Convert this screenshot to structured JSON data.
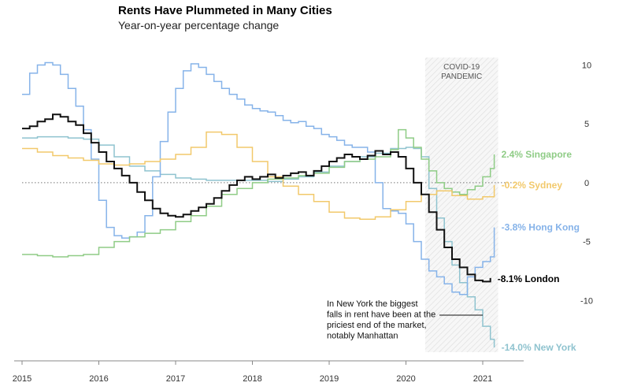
{
  "chart_data": {
    "type": "line",
    "title": "Rents Have Plummeted in Many Cities",
    "subtitle": "Year-on-year percentage change",
    "xlabel": "",
    "ylabel": "",
    "xlim": [
      2015,
      2021.4
    ],
    "ylim": [
      -14.2,
      10.5
    ],
    "x_ticks": [
      "2015",
      "2016",
      "2017",
      "2018",
      "2019",
      "2020",
      "2021"
    ],
    "y_ticks": [
      10,
      5,
      0,
      -5,
      -10
    ],
    "y_tick_labels": [
      "10",
      "5",
      "0",
      "-5",
      "-10"
    ],
    "zero_line": "dotted",
    "grid": false,
    "legend": "end-of-line labels",
    "shaded_region": {
      "label_line1": "COVID-19",
      "label_line2": "PANDEMIC",
      "x_start": 2020.25,
      "x_end": 2021.2
    },
    "annotation": {
      "lines": [
        "In New York the biggest",
        "falls in rent have been at the",
        "priciest end of the market,",
        "notably Manhattan"
      ],
      "points_to": "New York"
    },
    "series": [
      {
        "name": "New York",
        "end_label": "-14.0% New York",
        "color": "#8fc3cf",
        "x": [
          2015.0,
          2015.2,
          2015.4,
          2015.6,
          2015.8,
          2016.0,
          2016.2,
          2016.4,
          2016.6,
          2016.8,
          2017.0,
          2017.2,
          2017.4,
          2017.6,
          2017.8,
          2018.0,
          2018.2,
          2018.4,
          2018.6,
          2018.8,
          2019.0,
          2019.2,
          2019.4,
          2019.6,
          2019.8,
          2020.0,
          2020.1,
          2020.2,
          2020.3,
          2020.4,
          2020.5,
          2020.6,
          2020.7,
          2020.8,
          2020.9,
          2021.0,
          2021.1,
          2021.15
        ],
        "values": [
          3.8,
          3.9,
          3.9,
          3.8,
          3.7,
          3.2,
          2.2,
          1.4,
          1.0,
          0.7,
          0.4,
          0.3,
          0.2,
          0.2,
          0.2,
          0.2,
          0.1,
          0.3,
          0.5,
          0.9,
          1.4,
          1.8,
          2.2,
          2.5,
          2.9,
          3.0,
          2.9,
          2.2,
          -0.5,
          -3.0,
          -5.0,
          -7.0,
          -8.5,
          -9.7,
          -10.8,
          -12.2,
          -13.3,
          -14.0
        ]
      },
      {
        "name": "Hong Kong",
        "end_label": "-3.8% Hong Kong",
        "color": "#86b3e9",
        "x": [
          2015.0,
          2015.1,
          2015.2,
          2015.3,
          2015.4,
          2015.5,
          2015.6,
          2015.7,
          2015.8,
          2015.9,
          2016.0,
          2016.1,
          2016.2,
          2016.3,
          2016.4,
          2016.5,
          2016.6,
          2016.7,
          2016.8,
          2016.9,
          2017.0,
          2017.1,
          2017.2,
          2017.3,
          2017.4,
          2017.5,
          2017.6,
          2017.7,
          2017.8,
          2017.9,
          2018.0,
          2018.1,
          2018.2,
          2018.3,
          2018.4,
          2018.5,
          2018.6,
          2018.7,
          2018.8,
          2018.9,
          2019.0,
          2019.1,
          2019.2,
          2019.3,
          2019.4,
          2019.5,
          2019.6,
          2019.7,
          2019.8,
          2019.9,
          2020.0,
          2020.1,
          2020.2,
          2020.3,
          2020.4,
          2020.5,
          2020.6,
          2020.7,
          2020.8,
          2020.9,
          2021.0,
          2021.1,
          2021.15
        ],
        "values": [
          7.5,
          9.3,
          10.0,
          10.2,
          10.0,
          9.2,
          8.0,
          6.5,
          4.5,
          2.0,
          -1.5,
          -3.8,
          -4.5,
          -4.7,
          -4.6,
          -4.2,
          -2.8,
          0.5,
          3.5,
          6.0,
          8.0,
          9.5,
          10.1,
          9.8,
          9.2,
          8.6,
          8.0,
          7.5,
          7.1,
          6.6,
          6.3,
          6.1,
          6.0,
          5.7,
          5.3,
          5.1,
          5.2,
          4.8,
          4.6,
          4.1,
          3.9,
          3.6,
          3.2,
          3.0,
          3.0,
          2.6,
          0.0,
          -2.2,
          -2.4,
          -2.6,
          -3.5,
          -5.0,
          -6.5,
          -7.5,
          -8.0,
          -8.6,
          -9.3,
          -9.5,
          -8.0,
          -7.2,
          -6.7,
          -6.3,
          -3.8
        ]
      },
      {
        "name": "Singapore",
        "end_label": "2.4% Singapore",
        "color": "#8fcc86",
        "x": [
          2015.0,
          2015.2,
          2015.4,
          2015.6,
          2015.8,
          2016.0,
          2016.2,
          2016.4,
          2016.6,
          2016.8,
          2017.0,
          2017.2,
          2017.4,
          2017.6,
          2017.8,
          2018.0,
          2018.2,
          2018.4,
          2018.6,
          2018.8,
          2019.0,
          2019.2,
          2019.4,
          2019.6,
          2019.8,
          2019.9,
          2020.0,
          2020.1,
          2020.2,
          2020.3,
          2020.4,
          2020.5,
          2020.6,
          2020.7,
          2020.8,
          2020.9,
          2021.0,
          2021.1,
          2021.15
        ],
        "values": [
          -6.1,
          -6.2,
          -6.3,
          -6.2,
          -6.1,
          -5.5,
          -5.0,
          -4.6,
          -4.3,
          -4.0,
          -3.3,
          -2.8,
          -2.0,
          -1.0,
          -0.5,
          0.0,
          0.3,
          0.4,
          0.6,
          0.8,
          1.3,
          1.8,
          2.0,
          2.2,
          2.8,
          4.5,
          3.8,
          3.0,
          2.0,
          1.0,
          0.0,
          -0.5,
          -0.8,
          -1.0,
          -0.6,
          -0.3,
          0.5,
          1.2,
          2.4
        ]
      },
      {
        "name": "Sydney",
        "end_label": "-0.2% Sydney",
        "color": "#f2c96b",
        "x": [
          2015.0,
          2015.2,
          2015.4,
          2015.6,
          2015.8,
          2016.0,
          2016.2,
          2016.4,
          2016.6,
          2016.8,
          2017.0,
          2017.2,
          2017.4,
          2017.6,
          2017.8,
          2018.0,
          2018.2,
          2018.4,
          2018.6,
          2018.8,
          2019.0,
          2019.2,
          2019.4,
          2019.6,
          2019.8,
          2020.0,
          2020.2,
          2020.4,
          2020.6,
          2020.8,
          2021.0,
          2021.15
        ],
        "values": [
          2.9,
          2.6,
          2.3,
          2.1,
          1.9,
          1.6,
          1.5,
          1.6,
          1.8,
          2.0,
          2.4,
          3.0,
          4.3,
          4.1,
          3.0,
          1.8,
          0.5,
          -0.3,
          -1.0,
          -1.6,
          -2.5,
          -3.0,
          -3.1,
          -2.9,
          -2.3,
          -1.6,
          -1.0,
          -0.7,
          -1.1,
          -1.4,
          -1.2,
          -0.2
        ]
      },
      {
        "name": "London",
        "end_label": "-8.1% London",
        "color": "#111111",
        "x": [
          2015.0,
          2015.1,
          2015.2,
          2015.3,
          2015.4,
          2015.5,
          2015.6,
          2015.7,
          2015.8,
          2015.9,
          2016.0,
          2016.1,
          2016.2,
          2016.3,
          2016.4,
          2016.5,
          2016.6,
          2016.7,
          2016.8,
          2016.9,
          2017.0,
          2017.1,
          2017.2,
          2017.3,
          2017.4,
          2017.5,
          2017.6,
          2017.7,
          2017.8,
          2017.9,
          2018.0,
          2018.1,
          2018.2,
          2018.3,
          2018.4,
          2018.5,
          2018.6,
          2018.7,
          2018.8,
          2018.9,
          2019.0,
          2019.1,
          2019.2,
          2019.3,
          2019.4,
          2019.5,
          2019.6,
          2019.7,
          2019.8,
          2019.9,
          2020.0,
          2020.1,
          2020.2,
          2020.3,
          2020.4,
          2020.5,
          2020.6,
          2020.7,
          2020.8,
          2020.9,
          2021.0,
          2021.1
        ],
        "values": [
          4.6,
          4.8,
          5.2,
          5.4,
          5.8,
          5.6,
          5.2,
          4.9,
          4.2,
          3.4,
          2.6,
          1.8,
          1.2,
          0.6,
          0.0,
          -0.8,
          -1.5,
          -2.2,
          -2.6,
          -2.8,
          -2.9,
          -2.7,
          -2.4,
          -2.1,
          -1.8,
          -1.3,
          -0.7,
          -0.2,
          0.2,
          0.5,
          0.3,
          0.5,
          0.7,
          0.4,
          0.6,
          0.8,
          0.9,
          0.6,
          1.0,
          1.4,
          1.8,
          2.1,
          2.4,
          2.2,
          2.0,
          2.3,
          2.7,
          2.4,
          2.6,
          2.2,
          1.2,
          0.0,
          -1.0,
          -2.5,
          -4.0,
          -5.5,
          -6.5,
          -7.2,
          -7.8,
          -8.3,
          -8.4,
          -8.1
        ]
      }
    ]
  }
}
